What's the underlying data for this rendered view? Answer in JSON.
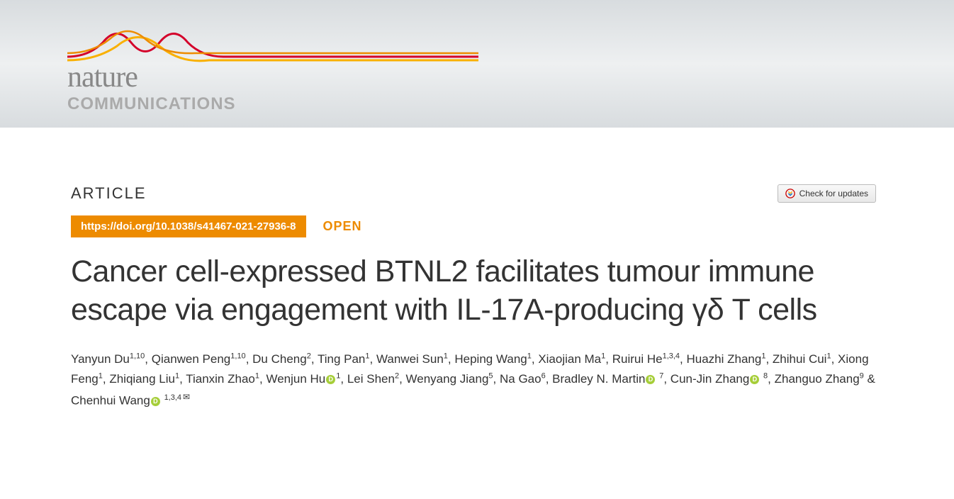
{
  "journal": {
    "name_primary": "nature",
    "name_secondary": "COMMUNICATIONS"
  },
  "article": {
    "label": "ARTICLE",
    "doi": "https://doi.org/10.1038/s41467-021-27936-8",
    "access": "OPEN",
    "title": "Cancer cell-expressed BTNL2 facilitates tumour immune escape via engagement with IL-17A-producing γδ T cells",
    "check_updates_label": "Check for updates",
    "authors": [
      {
        "name": "Yanyun Du",
        "affil": "1,10",
        "orcid": false,
        "corresponding": false
      },
      {
        "name": "Qianwen Peng",
        "affil": "1,10",
        "orcid": false,
        "corresponding": false
      },
      {
        "name": "Du Cheng",
        "affil": "2",
        "orcid": false,
        "corresponding": false
      },
      {
        "name": "Ting Pan",
        "affil": "1",
        "orcid": false,
        "corresponding": false
      },
      {
        "name": "Wanwei Sun",
        "affil": "1",
        "orcid": false,
        "corresponding": false
      },
      {
        "name": "Heping Wang",
        "affil": "1",
        "orcid": false,
        "corresponding": false
      },
      {
        "name": "Xiaojian Ma",
        "affil": "1",
        "orcid": false,
        "corresponding": false
      },
      {
        "name": "Ruirui He",
        "affil": "1,3,4",
        "orcid": false,
        "corresponding": false
      },
      {
        "name": "Huazhi Zhang",
        "affil": "1",
        "orcid": false,
        "corresponding": false
      },
      {
        "name": "Zhihui Cui",
        "affil": "1",
        "orcid": false,
        "corresponding": false
      },
      {
        "name": "Xiong Feng",
        "affil": "1",
        "orcid": false,
        "corresponding": false
      },
      {
        "name": "Zhiqiang Liu",
        "affil": "1",
        "orcid": false,
        "corresponding": false
      },
      {
        "name": "Tianxin Zhao",
        "affil": "1",
        "orcid": false,
        "corresponding": false
      },
      {
        "name": "Wenjun Hu",
        "affil": "1",
        "orcid": true,
        "corresponding": false
      },
      {
        "name": "Lei Shen",
        "affil": "2",
        "orcid": false,
        "corresponding": false
      },
      {
        "name": "Wenyang Jiang",
        "affil": "5",
        "orcid": false,
        "corresponding": false
      },
      {
        "name": "Na Gao",
        "affil": "6",
        "orcid": false,
        "corresponding": false
      },
      {
        "name": "Bradley N. Martin",
        "affil": "7",
        "orcid": true,
        "corresponding": false,
        "space_before_affil": true
      },
      {
        "name": "Cun-Jin Zhang",
        "affil": "8",
        "orcid": true,
        "corresponding": false,
        "space_before_affil": true
      },
      {
        "name": "Zhanguo Zhang",
        "affil": "9",
        "orcid": false,
        "corresponding": false
      },
      {
        "name": "Chenhui Wang",
        "affil": "1,3,4",
        "orcid": true,
        "corresponding": true,
        "space_before_affil": true,
        "last": true
      }
    ]
  },
  "colors": {
    "brand_orange": "#ed8b00",
    "brand_red": "#d4002a",
    "brand_yellow": "#f9b000",
    "orcid_green": "#a6ce39",
    "banner_gradient_edge": "#d8dcdf",
    "banner_gradient_mid": "#eef0f1",
    "text_primary": "#333333",
    "logo_grey": "#888888",
    "logo_grey_light": "#aaaaaa"
  }
}
